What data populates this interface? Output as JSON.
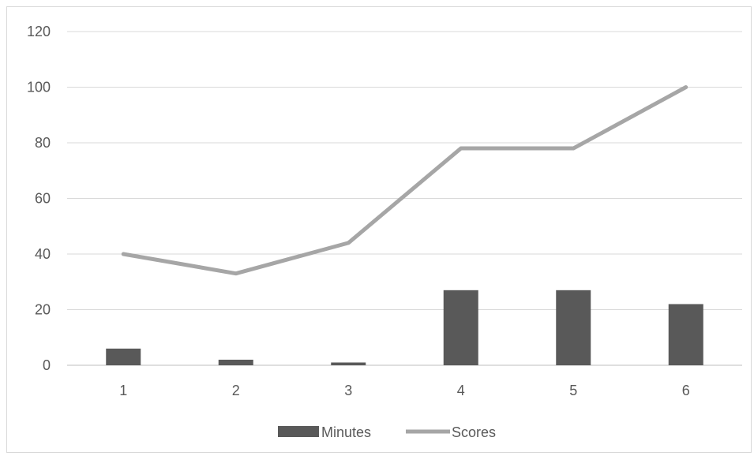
{
  "chart_data": {
    "type": "bar",
    "categories": [
      "1",
      "2",
      "3",
      "4",
      "5",
      "6"
    ],
    "series": [
      {
        "name": "Minutes",
        "kind": "bar",
        "values": [
          6,
          2,
          1,
          27,
          27,
          22
        ],
        "color": "#595959"
      },
      {
        "name": "Scores",
        "kind": "line",
        "values": [
          40,
          33,
          44,
          78,
          78,
          100
        ],
        "color": "#a6a6a6"
      }
    ],
    "yticks": [
      "0",
      "20",
      "40",
      "60",
      "80",
      "100",
      "120"
    ],
    "ylim": [
      0,
      120
    ],
    "grid": true,
    "legend": "bottom-center",
    "gridColor": "#d9d9d9",
    "axisColor": "#bfbfbf"
  }
}
